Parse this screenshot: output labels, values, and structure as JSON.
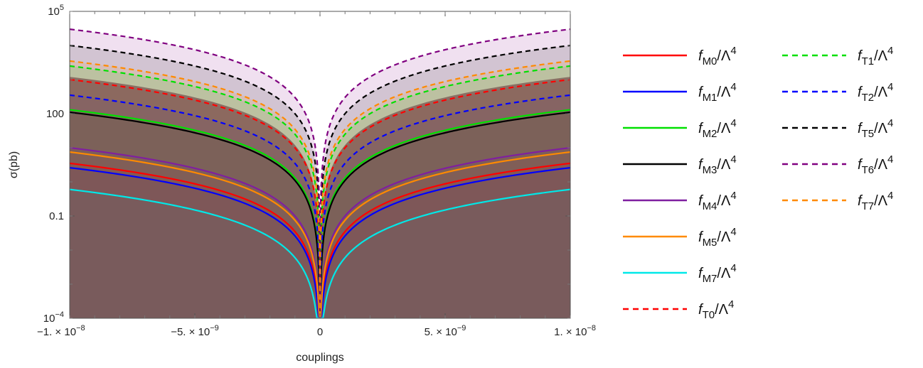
{
  "chart_data": {
    "type": "line",
    "xlabel": "couplings",
    "ylabel": "σ(pb)",
    "xlim": [
      -1e-08,
      1e-08
    ],
    "ylim": [
      0.0001,
      100000
    ],
    "y_scale": "log",
    "x_ticks": [
      {
        "value": -1e-08,
        "label": "−1. × 10",
        "exp": "−8"
      },
      {
        "value": -5e-09,
        "label": "−5. × 10",
        "exp": "−9"
      },
      {
        "value": 0,
        "label": "0",
        "exp": ""
      },
      {
        "value": 5e-09,
        "label": "5. × 10",
        "exp": "−9"
      },
      {
        "value": 1e-08,
        "label": "1. × 10",
        "exp": "−8"
      }
    ],
    "y_ticks": [
      {
        "value": 100000,
        "label": "10",
        "exp": "5"
      },
      {
        "value": 100,
        "label": "100",
        "exp": ""
      },
      {
        "value": 0.1,
        "label": "0.1",
        "exp": ""
      },
      {
        "value": 0.0001,
        "label": "10",
        "exp": "−4"
      }
    ],
    "grid": false,
    "legend_position": "right",
    "fill_color": "#7a5450",
    "series": [
      {
        "name": "M0",
        "color": "#ff0000",
        "dash": false,
        "y_edge": 3.5
      },
      {
        "name": "M1",
        "color": "#0000ff",
        "dash": false,
        "y_edge": 2.6
      },
      {
        "name": "M2",
        "color": "#00e000",
        "dash": false,
        "y_edge": 130
      },
      {
        "name": "M3",
        "color": "#000000",
        "dash": false,
        "y_edge": 110
      },
      {
        "name": "M4",
        "color": "#7f1fa0",
        "dash": false,
        "y_edge": 10
      },
      {
        "name": "M5",
        "color": "#ff8a00",
        "dash": false,
        "y_edge": 7.5
      },
      {
        "name": "M7",
        "color": "#00e8e8",
        "dash": false,
        "y_edge": 0.6
      },
      {
        "name": "T0",
        "color": "#ff0000",
        "dash": true,
        "y_edge": 1000
      },
      {
        "name": "T1",
        "color": "#00e000",
        "dash": true,
        "y_edge": 2500
      },
      {
        "name": "T2",
        "color": "#0000ff",
        "dash": true,
        "y_edge": 350
      },
      {
        "name": "T5",
        "color": "#000000",
        "dash": true,
        "y_edge": 10000
      },
      {
        "name": "T6",
        "color": "#800080",
        "dash": true,
        "y_edge": 30000
      },
      {
        "name": "T7",
        "color": "#ff8a00",
        "dash": true,
        "y_edge": 3500
      }
    ],
    "scaling": "sigma proportional to coupling squared"
  }
}
